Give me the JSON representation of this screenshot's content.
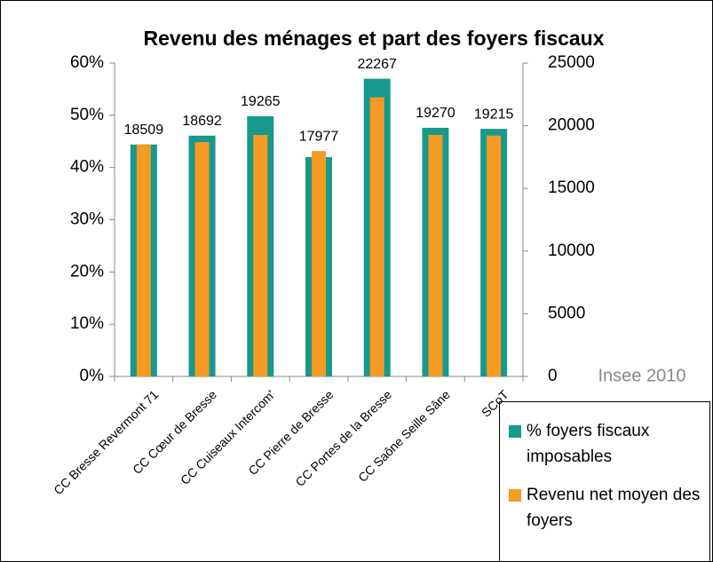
{
  "chart_data": {
    "type": "bar",
    "title": "Revenu des ménages et part des foyers fiscaux",
    "annotation": "Insee 2010",
    "categories": [
      "CC Bresse Revermont 71",
      "CC Cœur de Bresse",
      "CC Cuiseaux Intercom'",
      "CC Pierre de Bresse",
      "CC Portes de la Bresse",
      "CC Saône Seille Sâne",
      "SCoT"
    ],
    "series": [
      {
        "name": "% foyers fiscaux imposables",
        "color": "#17998c",
        "values": [
          44.4,
          46.1,
          49.8,
          42,
          57,
          47.6,
          47.4
        ]
      },
      {
        "name": "Revenu net moyen des foyers",
        "color": "#f59a23",
        "axis": "y2",
        "values": [
          18509,
          18692,
          19265,
          17977,
          22267,
          19270,
          19215
        ]
      }
    ],
    "ylim": [
      0,
      60
    ],
    "yticks": [
      {
        "value": 0,
        "label": "0%"
      },
      {
        "value": 10,
        "label": "10%"
      },
      {
        "value": 20,
        "label": "20%"
      },
      {
        "value": 30,
        "label": "30%"
      },
      {
        "value": 40,
        "label": "40%"
      },
      {
        "value": 50,
        "label": "50%"
      },
      {
        "value": 60,
        "label": "60%"
      }
    ],
    "y2lim": [
      0,
      25000
    ],
    "y2ticks": [
      0,
      5000,
      10000,
      15000,
      20000,
      25000
    ],
    "legend": "bottom-right"
  }
}
